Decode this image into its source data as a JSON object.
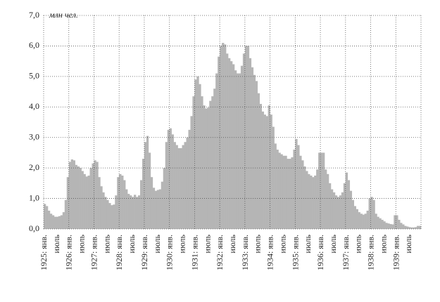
{
  "chart_data": {
    "type": "bar",
    "y_label": "млн чел.",
    "color": "#b5b5b5",
    "grid": true,
    "ylim": [
      0,
      7
    ],
    "yticks": [
      {
        "value": 0,
        "label": "0,0"
      },
      {
        "value": 1,
        "label": "1,0"
      },
      {
        "value": 2,
        "label": "2,0"
      },
      {
        "value": 3,
        "label": "3,0"
      },
      {
        "value": 4,
        "label": "4,0"
      },
      {
        "value": 5,
        "label": "5,0"
      },
      {
        "value": 6,
        "label": "6,0"
      },
      {
        "value": 7,
        "label": "7,0"
      }
    ],
    "categories": [
      "1925: янв.",
      null,
      null,
      null,
      null,
      null,
      "июль",
      null,
      null,
      null,
      null,
      null,
      "1926: янв.",
      null,
      null,
      null,
      null,
      null,
      "июль",
      null,
      null,
      null,
      null,
      null,
      "1927: янв.",
      null,
      null,
      null,
      null,
      null,
      "июль",
      null,
      null,
      null,
      null,
      null,
      "1928: янв.",
      null,
      null,
      null,
      null,
      null,
      "июль",
      null,
      null,
      null,
      null,
      null,
      "1929: янв.",
      null,
      null,
      null,
      null,
      null,
      "июль",
      null,
      null,
      null,
      null,
      null,
      "1930: янв.",
      null,
      null,
      null,
      null,
      null,
      "июль",
      null,
      null,
      null,
      null,
      null,
      "1931: янв.",
      null,
      null,
      null,
      null,
      null,
      "июль",
      null,
      null,
      null,
      null,
      null,
      "1932: янв.",
      null,
      null,
      null,
      null,
      null,
      "июль",
      null,
      null,
      null,
      null,
      null,
      "1933: янв.",
      null,
      null,
      null,
      null,
      null,
      "июль",
      null,
      null,
      null,
      null,
      null,
      "1934: янв.",
      null,
      null,
      null,
      null,
      null,
      "июль",
      null,
      null,
      null,
      null,
      null,
      "1935: янв.",
      null,
      null,
      null,
      null,
      null,
      "июль",
      null,
      null,
      null,
      null,
      null,
      "1936: янв.",
      null,
      null,
      null,
      null,
      null,
      "июль",
      null,
      null,
      null,
      null,
      null,
      "1937: янв.",
      null,
      null,
      null,
      null,
      null,
      "июль",
      null,
      null,
      null,
      null,
      null,
      "1938: янв.",
      null,
      null,
      null,
      null,
      null,
      "июль",
      null,
      null,
      null,
      null,
      null,
      "1939: янв.",
      null,
      null,
      null,
      null,
      null,
      "июль",
      null,
      null,
      null,
      null,
      null
    ],
    "values": [
      0.82,
      0.75,
      0.6,
      0.5,
      0.45,
      0.4,
      0.4,
      0.42,
      0.45,
      0.55,
      0.95,
      1.7,
      2.2,
      2.28,
      2.25,
      2.1,
      2.05,
      2.0,
      1.9,
      1.8,
      1.72,
      1.75,
      2.0,
      2.15,
      2.25,
      2.2,
      1.7,
      1.4,
      1.2,
      1.05,
      0.95,
      0.85,
      0.78,
      0.8,
      1.1,
      1.7,
      1.8,
      1.75,
      1.6,
      1.3,
      1.15,
      1.1,
      1.05,
      1.12,
      1.05,
      1.1,
      1.6,
      2.3,
      2.85,
      3.05,
      2.5,
      1.7,
      1.35,
      1.25,
      1.28,
      1.3,
      1.55,
      2.0,
      2.85,
      3.25,
      3.3,
      3.1,
      2.85,
      2.75,
      2.65,
      2.65,
      2.75,
      2.85,
      3.0,
      3.25,
      3.7,
      4.35,
      4.9,
      5.0,
      4.75,
      4.35,
      4.05,
      3.95,
      3.98,
      4.2,
      4.35,
      4.6,
      5.1,
      5.65,
      6.0,
      6.1,
      6.05,
      5.75,
      5.6,
      5.5,
      5.4,
      5.2,
      5.1,
      5.1,
      5.35,
      5.75,
      6.0,
      6.0,
      5.6,
      5.3,
      5.05,
      4.85,
      4.45,
      4.1,
      3.85,
      3.75,
      3.7,
      4.05,
      3.75,
      3.35,
      2.8,
      2.6,
      2.5,
      2.45,
      2.4,
      2.4,
      2.3,
      2.3,
      2.35,
      2.6,
      2.95,
      2.75,
      2.4,
      2.25,
      2.05,
      1.9,
      1.8,
      1.75,
      1.7,
      1.75,
      1.95,
      2.5,
      2.5,
      2.5,
      1.95,
      1.8,
      1.5,
      1.3,
      1.2,
      1.1,
      1.05,
      1.1,
      1.2,
      1.5,
      1.85,
      1.6,
      1.25,
      0.95,
      0.75,
      0.65,
      0.55,
      0.5,
      0.47,
      0.5,
      0.6,
      1.0,
      1.05,
      0.95,
      0.5,
      0.4,
      0.35,
      0.3,
      0.25,
      0.2,
      0.18,
      0.16,
      0.15,
      0.45,
      0.45,
      0.3,
      0.2,
      0.15,
      0.1,
      0.08,
      0.06,
      0.05,
      0.05,
      0.06,
      0.1,
      0.1
    ]
  }
}
